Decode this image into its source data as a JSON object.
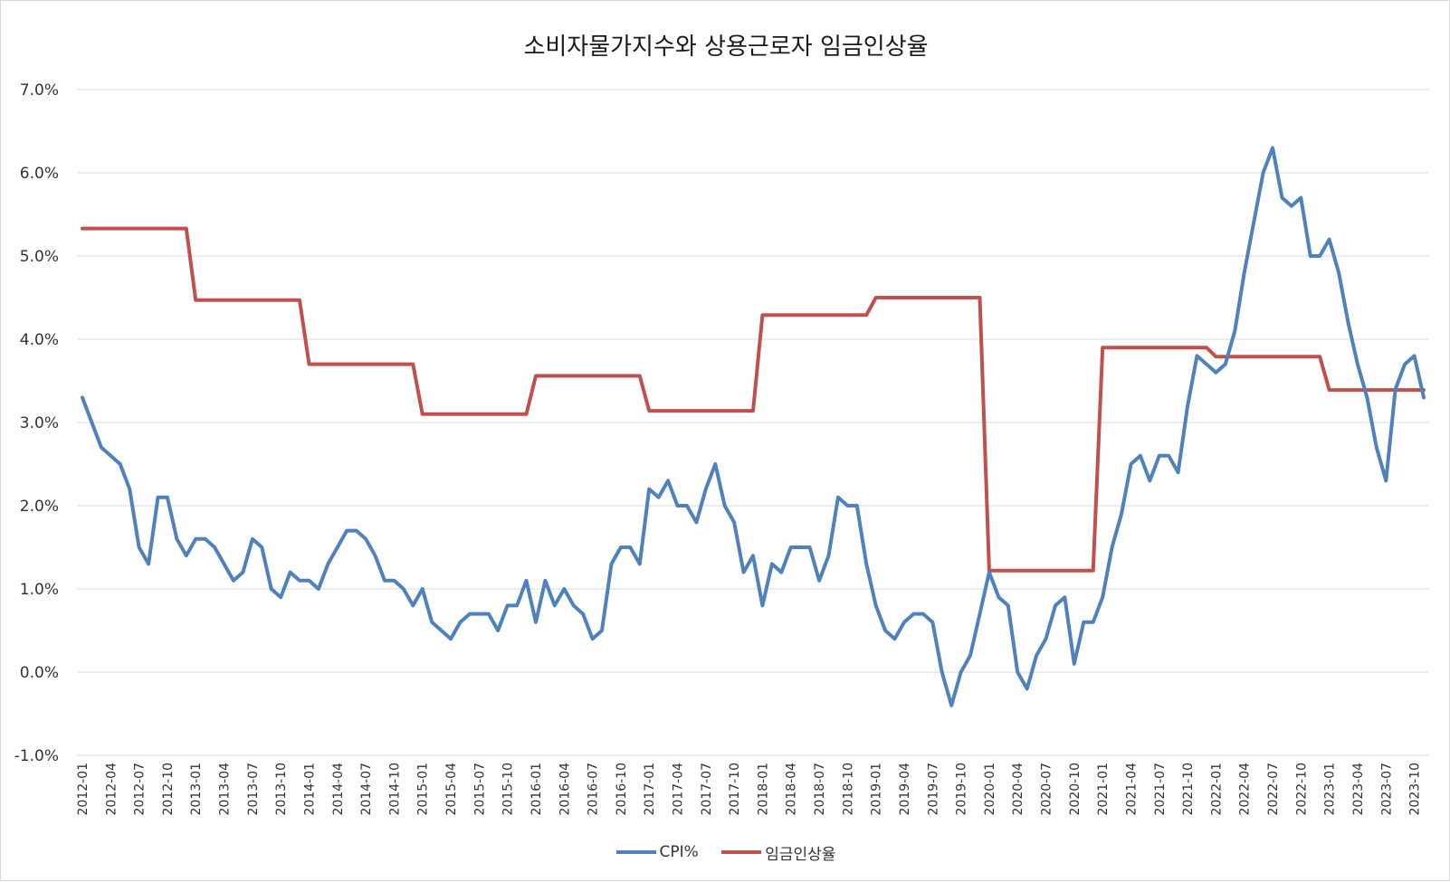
{
  "chart_data": {
    "type": "line",
    "title": "소비자물가지수와 상용근로자 임금인상율",
    "xlabel": "",
    "ylabel": "",
    "ylim": [
      -1.0,
      7.0
    ],
    "yticks": [
      "7.0%",
      "6.0%",
      "5.0%",
      "4.0%",
      "3.0%",
      "2.0%",
      "1.0%",
      "0.0%",
      "-1.0%"
    ],
    "grid": true,
    "legend_position": "bottom",
    "x": [
      "2012-01",
      "2012-02",
      "2012-03",
      "2012-04",
      "2012-05",
      "2012-06",
      "2012-07",
      "2012-08",
      "2012-09",
      "2012-10",
      "2012-11",
      "2012-12",
      "2013-01",
      "2013-02",
      "2013-03",
      "2013-04",
      "2013-05",
      "2013-06",
      "2013-07",
      "2013-08",
      "2013-09",
      "2013-10",
      "2013-11",
      "2013-12",
      "2014-01",
      "2014-02",
      "2014-03",
      "2014-04",
      "2014-05",
      "2014-06",
      "2014-07",
      "2014-08",
      "2014-09",
      "2014-10",
      "2014-11",
      "2014-12",
      "2015-01",
      "2015-02",
      "2015-03",
      "2015-04",
      "2015-05",
      "2015-06",
      "2015-07",
      "2015-08",
      "2015-09",
      "2015-10",
      "2015-11",
      "2015-12",
      "2016-01",
      "2016-02",
      "2016-03",
      "2016-04",
      "2016-05",
      "2016-06",
      "2016-07",
      "2016-08",
      "2016-09",
      "2016-10",
      "2016-11",
      "2016-12",
      "2017-01",
      "2017-02",
      "2017-03",
      "2017-04",
      "2017-05",
      "2017-06",
      "2017-07",
      "2017-08",
      "2017-09",
      "2017-10",
      "2017-11",
      "2017-12",
      "2018-01",
      "2018-02",
      "2018-03",
      "2018-04",
      "2018-05",
      "2018-06",
      "2018-07",
      "2018-08",
      "2018-09",
      "2018-10",
      "2018-11",
      "2018-12",
      "2019-01",
      "2019-02",
      "2019-03",
      "2019-04",
      "2019-05",
      "2019-06",
      "2019-07",
      "2019-08",
      "2019-09",
      "2019-10",
      "2019-11",
      "2019-12",
      "2020-01",
      "2020-02",
      "2020-03",
      "2020-04",
      "2020-05",
      "2020-06",
      "2020-07",
      "2020-08",
      "2020-09",
      "2020-10",
      "2020-11",
      "2020-12",
      "2021-01",
      "2021-02",
      "2021-03",
      "2021-04",
      "2021-05",
      "2021-06",
      "2021-07",
      "2021-08",
      "2021-09",
      "2021-10",
      "2021-11",
      "2021-12",
      "2022-01",
      "2022-02",
      "2022-03",
      "2022-04",
      "2022-05",
      "2022-06",
      "2022-07",
      "2022-08",
      "2022-09",
      "2022-10",
      "2022-11",
      "2022-12",
      "2023-01",
      "2023-02",
      "2023-03",
      "2023-04",
      "2023-05",
      "2023-06",
      "2023-07",
      "2023-08",
      "2023-09",
      "2023-10",
      "2023-11"
    ],
    "x_tick_labels": [
      "2012-01",
      "2012-04",
      "2012-07",
      "2012-10",
      "2013-01",
      "2013-04",
      "2013-07",
      "2013-10",
      "2014-01",
      "2014-04",
      "2014-07",
      "2014-10",
      "2015-01",
      "2015-04",
      "2015-07",
      "2015-10",
      "2016-01",
      "2016-04",
      "2016-07",
      "2016-10",
      "2017-01",
      "2017-04",
      "2017-07",
      "2017-10",
      "2018-01",
      "2018-04",
      "2018-07",
      "2018-10",
      "2019-01",
      "2019-04",
      "2019-07",
      "2019-10",
      "2020-01",
      "2020-04",
      "2020-07",
      "2020-10",
      "2021-01",
      "2021-04",
      "2021-07",
      "2021-10",
      "2022-01",
      "2022-04",
      "2022-07",
      "2022-10",
      "2023-01",
      "2023-04",
      "2023-07",
      "2023-10"
    ],
    "series": [
      {
        "name": "CPI%",
        "color": "#4f81bd",
        "values": [
          3.3,
          3.0,
          2.7,
          2.6,
          2.5,
          2.2,
          1.5,
          1.3,
          2.1,
          2.1,
          1.6,
          1.4,
          1.6,
          1.6,
          1.5,
          1.3,
          1.1,
          1.2,
          1.6,
          1.5,
          1.0,
          0.9,
          1.2,
          1.1,
          1.1,
          1.0,
          1.3,
          1.5,
          1.7,
          1.7,
          1.6,
          1.4,
          1.1,
          1.1,
          1.0,
          0.8,
          1.0,
          0.6,
          0.5,
          0.4,
          0.6,
          0.7,
          0.7,
          0.7,
          0.5,
          0.8,
          0.8,
          1.1,
          0.6,
          1.1,
          0.8,
          1.0,
          0.8,
          0.7,
          0.4,
          0.5,
          1.3,
          1.5,
          1.5,
          1.3,
          2.2,
          2.1,
          2.3,
          2.0,
          2.0,
          1.8,
          2.2,
          2.5,
          2.0,
          1.8,
          1.2,
          1.4,
          0.8,
          1.3,
          1.2,
          1.5,
          1.5,
          1.5,
          1.1,
          1.4,
          2.1,
          2.0,
          2.0,
          1.3,
          0.8,
          0.5,
          0.4,
          0.6,
          0.7,
          0.7,
          0.6,
          0.0,
          -0.4,
          0.0,
          0.2,
          0.7,
          1.2,
          0.9,
          0.8,
          0.0,
          -0.2,
          0.2,
          0.4,
          0.8,
          0.9,
          0.1,
          0.6,
          0.6,
          0.9,
          1.5,
          1.9,
          2.5,
          2.6,
          2.3,
          2.6,
          2.6,
          2.4,
          3.2,
          3.8,
          3.7,
          3.6,
          3.7,
          4.1,
          4.8,
          5.4,
          6.0,
          6.3,
          5.7,
          5.6,
          5.7,
          5.0,
          5.0,
          5.2,
          4.8,
          4.2,
          3.7,
          3.3,
          2.7,
          2.3,
          3.4,
          3.7,
          3.8,
          3.3
        ]
      },
      {
        "name": "임금인상율",
        "color": "#c0504d",
        "values": [
          5.33,
          5.33,
          5.33,
          5.33,
          5.33,
          5.33,
          5.33,
          5.33,
          5.33,
          5.33,
          5.33,
          5.33,
          4.47,
          4.47,
          4.47,
          4.47,
          4.47,
          4.47,
          4.47,
          4.47,
          4.47,
          4.47,
          4.47,
          4.47,
          3.7,
          3.7,
          3.7,
          3.7,
          3.7,
          3.7,
          3.7,
          3.7,
          3.7,
          3.7,
          3.7,
          3.7,
          3.1,
          3.1,
          3.1,
          3.1,
          3.1,
          3.1,
          3.1,
          3.1,
          3.1,
          3.1,
          3.1,
          3.1,
          3.56,
          3.56,
          3.56,
          3.56,
          3.56,
          3.56,
          3.56,
          3.56,
          3.56,
          3.56,
          3.56,
          3.56,
          3.14,
          3.14,
          3.14,
          3.14,
          3.14,
          3.14,
          3.14,
          3.14,
          3.14,
          3.14,
          3.14,
          3.14,
          4.29,
          4.29,
          4.29,
          4.29,
          4.29,
          4.29,
          4.29,
          4.29,
          4.29,
          4.29,
          4.29,
          4.29,
          4.5,
          4.5,
          4.5,
          4.5,
          4.5,
          4.5,
          4.5,
          4.5,
          4.5,
          4.5,
          4.5,
          4.5,
          1.22,
          1.22,
          1.22,
          1.22,
          1.22,
          1.22,
          1.22,
          1.22,
          1.22,
          1.22,
          1.22,
          1.22,
          3.9,
          3.9,
          3.9,
          3.9,
          3.9,
          3.9,
          3.9,
          3.9,
          3.9,
          3.9,
          3.9,
          3.9,
          3.79,
          3.79,
          3.79,
          3.79,
          3.79,
          3.79,
          3.79,
          3.79,
          3.79,
          3.79,
          3.79,
          3.79,
          3.39,
          3.39,
          3.39,
          3.39,
          3.39,
          3.39,
          3.39,
          3.39,
          3.39,
          3.39,
          3.39
        ]
      }
    ]
  }
}
